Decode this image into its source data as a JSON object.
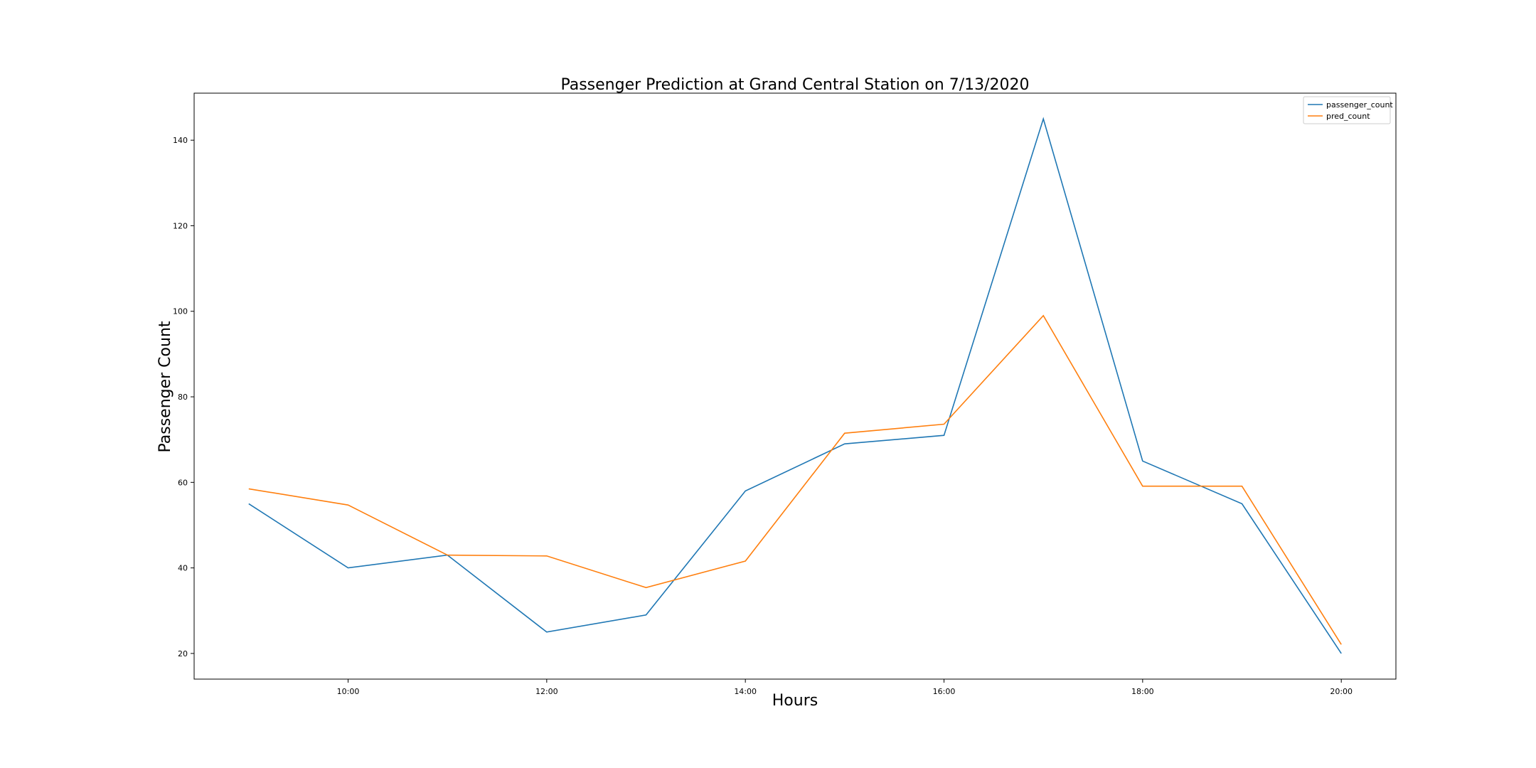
{
  "chart_data": {
    "type": "line",
    "title": "Passenger Prediction at Grand Central Station on 7/13/2020",
    "xlabel": "Hours",
    "ylabel": "Passenger Count",
    "x": [
      "09:00",
      "10:00",
      "11:00",
      "12:00",
      "13:00",
      "14:00",
      "15:00",
      "16:00",
      "17:00",
      "18:00",
      "19:00",
      "20:00"
    ],
    "x_ticks": [
      "10:00",
      "12:00",
      "14:00",
      "16:00",
      "18:00",
      "20:00"
    ],
    "y_ticks": [
      20,
      40,
      60,
      80,
      100,
      120,
      140
    ],
    "xlim": [
      "08:27",
      "20:33"
    ],
    "ylim": [
      14,
      151
    ],
    "grid": false,
    "legend_position": "upper right",
    "series": [
      {
        "name": "passenger_count",
        "color": "#1f77b4",
        "values": [
          55,
          40,
          43,
          25,
          29,
          58,
          69,
          71,
          145,
          65,
          55,
          20
        ]
      },
      {
        "name": "pred_count",
        "color": "#ff7f0e",
        "values": [
          58.5,
          54.7,
          43,
          42.8,
          35.4,
          41.6,
          71.5,
          73.6,
          99,
          59.1,
          59.1,
          22.1
        ]
      }
    ]
  }
}
